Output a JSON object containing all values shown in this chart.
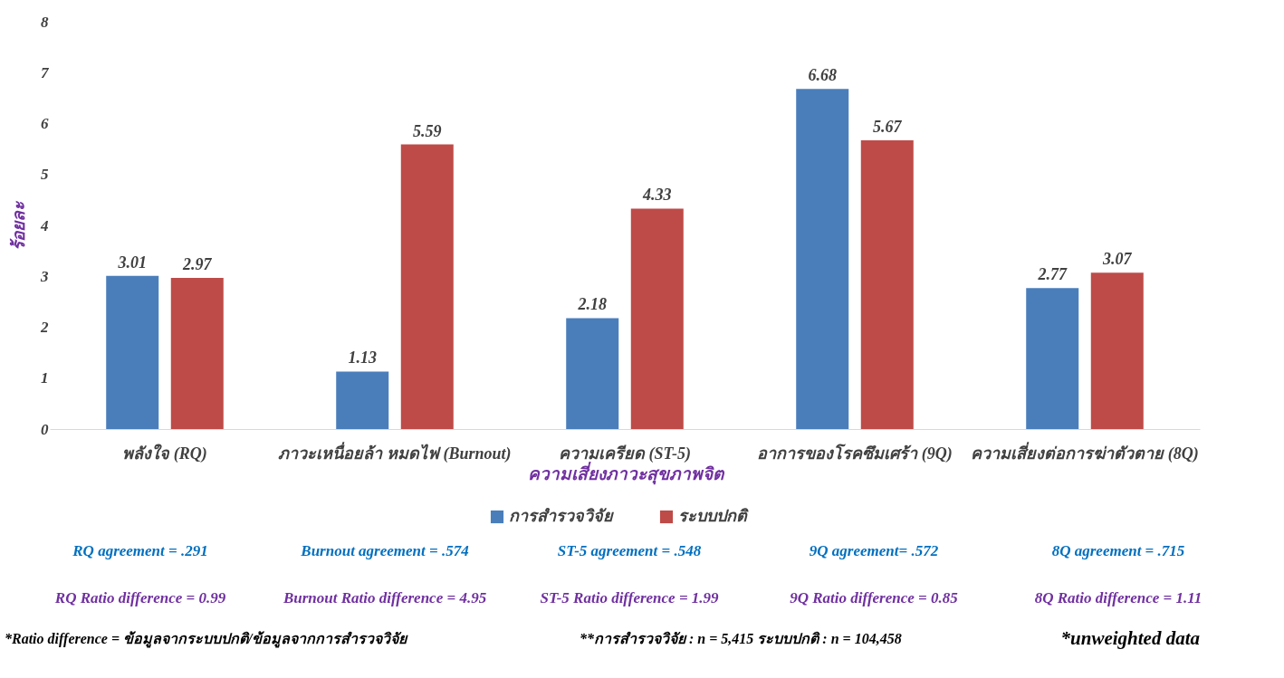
{
  "chart_data": {
    "type": "bar",
    "ylabel": "ร้อยละ",
    "xlabel": "ความเสี่ยงภาวะสุขภาพจิต",
    "categories": [
      "พลังใจ (RQ)",
      "ภาวะเหนื่อยล้า หมดไฟ (Burnout)",
      "ความเครียด (ST-5)",
      "อาการของโรคซึมเศร้า (9Q)",
      "ความเสี่ยงต่อการฆ่าตัวตาย (8Q)"
    ],
    "series": [
      {
        "name": "การสำรวจวิจัย",
        "color": "#4a7ebb",
        "values": [
          3.01,
          1.13,
          2.18,
          6.68,
          2.77
        ]
      },
      {
        "name": "ระบบปกติ",
        "color": "#be4b48",
        "values": [
          2.97,
          5.59,
          4.33,
          5.67,
          3.07
        ]
      }
    ],
    "ylim": [
      0,
      8
    ],
    "yticks": [
      0,
      1,
      2,
      3,
      4,
      5,
      6,
      7,
      8
    ],
    "grid": false,
    "legend": "bottom",
    "data_labels": true,
    "annotations": [
      "RQ agreement = .291",
      "Burnout agreement = .574",
      "ST-5 agreement = .548",
      "9Q agreement= .572",
      "8Q agreement = .715",
      "RQ Ratio difference = 0.99",
      "Burnout Ratio difference = 4.95",
      "ST-5 Ratio difference = 1.99",
      "9Q Ratio difference = 0.85",
      "8Q Ratio difference = 1.11",
      "*Ratio difference = ข้อมูลจากระบบปกติ/ข้อมูลจากการสำรวจวิจัย",
      "**การสำรวจวิจัย : n = 5,415  ระบบปกติ : n = 104,458",
      "*unweighted data"
    ]
  }
}
